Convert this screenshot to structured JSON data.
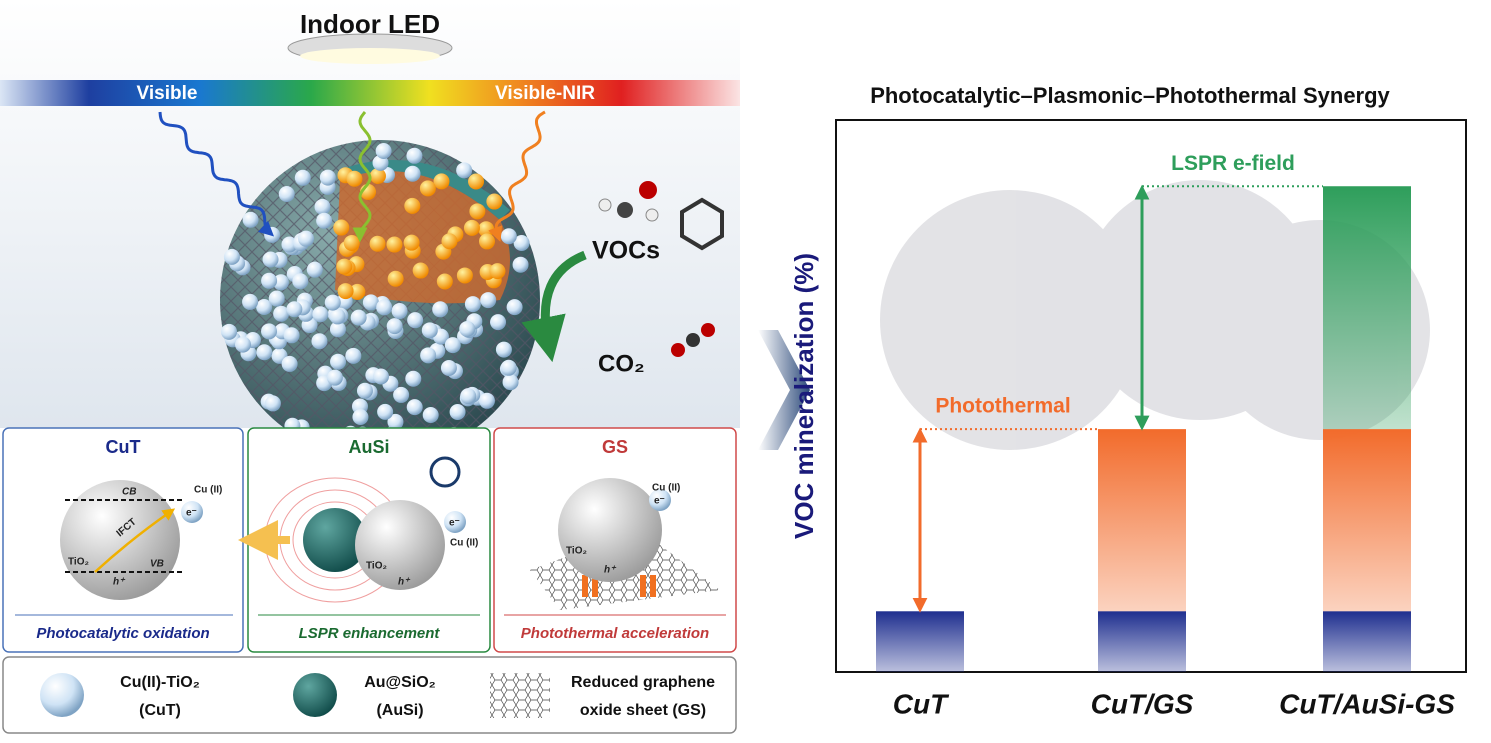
{
  "light": {
    "label": "Indoor LED",
    "visible": "Visible",
    "visible_nir": "Visible-NIR"
  },
  "reaction": {
    "reactant": "VOCs",
    "product": "CO₂"
  },
  "panels": [
    {
      "title": "CuT",
      "caption": "Photocatalytic oxidation",
      "labels": [
        "CB",
        "Cu (II)",
        "e⁻",
        "IFCT",
        "TiO₂",
        "VB",
        "h⁺"
      ]
    },
    {
      "title": "AuSi",
      "caption": "LSPR enhancement",
      "labels": [
        "e⁻",
        "Cu (II)",
        "TiO₂",
        "h⁺"
      ]
    },
    {
      "title": "GS",
      "caption": "Photothermal acceleration",
      "labels": [
        "Cu (II)",
        "e⁻",
        "TiO₂",
        "h⁺"
      ]
    }
  ],
  "legend": [
    {
      "label": "Cu(II)-TiO₂",
      "abbr": "(CuT)"
    },
    {
      "label": "Au@SiO₂",
      "abbr": "(AuSi)"
    },
    {
      "label": "Reduced graphene",
      "abbr": "oxide sheet (GS)"
    }
  ],
  "chart_data": {
    "type": "bar",
    "title": "Photocatalytic–Plasmonic–Photothermal Synergy",
    "y_label": "VOC mineralization (%)",
    "categories": [
      "CuT",
      "CuT/GS",
      "CuT/AuSi-GS"
    ],
    "ylim": [
      0,
      100
    ],
    "series": [
      {
        "color": "#1f2f8f",
        "values": [
          11,
          11,
          11
        ]
      },
      {
        "color": "#f26b2b",
        "values": [
          null,
          33,
          33
        ]
      },
      {
        "color": "#2e9e5b",
        "values": [
          null,
          null,
          44
        ]
      }
    ],
    "annotations": [
      "Photothermal",
      "LSPR e-field"
    ]
  }
}
